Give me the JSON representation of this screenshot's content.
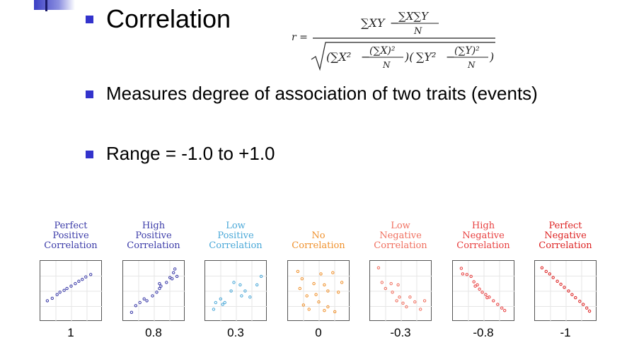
{
  "title": "Correlation",
  "formula": {
    "lhs": "r =",
    "numerator_sum_xy": "∑XY",
    "numerator_minus": "−",
    "numerator_sum_x_sum_y": "∑X∑Y",
    "numerator_n": "N",
    "denominator_sum_x2": "∑X²",
    "denominator_sumx_sq": "(∑X)²",
    "denominator_sum_y2": "∑Y²",
    "denominator_sumy_sq": "(∑Y)²",
    "denominator_n": "N"
  },
  "bullets": [
    "Measures degree of association of two traits (events)",
    "Range = -1.0 to +1.0"
  ],
  "colors": {
    "bullet": "#3333cc",
    "accent": "#3b3fc4"
  },
  "chart_data": {
    "type": "scatter",
    "panels": [
      {
        "label": [
          "Perfect",
          "Positive",
          "Correlation"
        ],
        "value": "1",
        "color": "#3b3ba8",
        "points": [
          [
            0.8,
            3.2
          ],
          [
            1.5,
            3.6
          ],
          [
            2.2,
            4.2
          ],
          [
            2.6,
            4.6
          ],
          [
            3.2,
            4.9
          ],
          [
            3.6,
            5.2
          ],
          [
            4.2,
            5.6
          ],
          [
            4.8,
            6.0
          ],
          [
            5.3,
            6.4
          ],
          [
            5.8,
            6.7
          ],
          [
            6.3,
            7.1
          ],
          [
            7.0,
            7.5
          ]
        ]
      },
      {
        "label": [
          "High",
          "Positive",
          "Correlation"
        ],
        "value": "0.8",
        "color": "#3b3ba8",
        "points": [
          [
            1.0,
            1.3
          ],
          [
            1.6,
            2.4
          ],
          [
            2.2,
            2.9
          ],
          [
            2.8,
            3.5
          ],
          [
            3.2,
            3.2
          ],
          [
            4.0,
            4.0
          ],
          [
            4.6,
            4.6
          ],
          [
            5.0,
            5.2
          ],
          [
            5.2,
            5.6
          ],
          [
            5.0,
            6.0
          ],
          [
            6.0,
            6.2
          ],
          [
            6.5,
            7.0
          ],
          [
            7.0,
            7.8
          ],
          [
            7.2,
            8.4
          ],
          [
            7.5,
            7.2
          ],
          [
            6.8,
            6.8
          ]
        ]
      },
      {
        "label": [
          "Low",
          "Positive",
          "Correlation"
        ],
        "value": "0.3",
        "color": "#4aa8d8",
        "points": [
          [
            1.0,
            1.8
          ],
          [
            1.3,
            2.9
          ],
          [
            2.0,
            3.5
          ],
          [
            2.3,
            2.6
          ],
          [
            2.6,
            2.9
          ],
          [
            3.5,
            4.8
          ],
          [
            3.9,
            6.2
          ],
          [
            4.8,
            5.8
          ],
          [
            5.0,
            4.0
          ],
          [
            5.5,
            4.8
          ],
          [
            6.2,
            3.8
          ],
          [
            7.2,
            5.8
          ],
          [
            7.8,
            7.2
          ]
        ]
      },
      {
        "label": [
          "No",
          "Correlation"
        ],
        "value": "0",
        "color": "#f0922e",
        "points": [
          [
            1.2,
            8.0
          ],
          [
            1.8,
            6.8
          ],
          [
            1.5,
            5.2
          ],
          [
            2.5,
            4.0
          ],
          [
            2.0,
            2.5
          ],
          [
            2.8,
            1.8
          ],
          [
            3.5,
            6.0
          ],
          [
            3.8,
            4.2
          ],
          [
            4.2,
            3.0
          ],
          [
            4.5,
            7.6
          ],
          [
            5.0,
            5.8
          ],
          [
            5.5,
            2.2
          ],
          [
            5.5,
            4.8
          ],
          [
            6.2,
            7.8
          ],
          [
            6.5,
            1.4
          ],
          [
            7.0,
            4.6
          ],
          [
            7.5,
            6.2
          ],
          [
            5.0,
            1.6
          ]
        ]
      },
      {
        "label": [
          "Low",
          "Negative",
          "Correlation"
        ],
        "value": "-0.3",
        "color": "#f07060",
        "points": [
          [
            1.0,
            8.6
          ],
          [
            1.5,
            6.2
          ],
          [
            2.0,
            5.2
          ],
          [
            2.8,
            6.0
          ],
          [
            3.0,
            4.6
          ],
          [
            3.8,
            5.8
          ],
          [
            4.0,
            3.8
          ],
          [
            4.5,
            2.8
          ],
          [
            5.0,
            2.2
          ],
          [
            5.5,
            3.8
          ],
          [
            6.2,
            3.0
          ],
          [
            7.0,
            1.8
          ],
          [
            7.6,
            3.2
          ],
          [
            3.6,
            3.2
          ]
        ]
      },
      {
        "label": [
          "High",
          "Negative",
          "Correlation"
        ],
        "value": "-0.8",
        "color": "#e84040",
        "points": [
          [
            1.0,
            8.5
          ],
          [
            1.2,
            7.6
          ],
          [
            1.8,
            7.5
          ],
          [
            2.4,
            7.2
          ],
          [
            2.8,
            6.3
          ],
          [
            3.0,
            5.6
          ],
          [
            3.6,
            5.1
          ],
          [
            4.0,
            4.6
          ],
          [
            4.5,
            4.2
          ],
          [
            5.0,
            3.8
          ],
          [
            5.6,
            3.2
          ],
          [
            6.2,
            2.6
          ],
          [
            6.8,
            2.0
          ],
          [
            7.2,
            1.6
          ],
          [
            3.3,
            5.8
          ],
          [
            4.7,
            3.7
          ]
        ]
      },
      {
        "label": [
          "Perfect",
          "Negative",
          "Correlation"
        ],
        "value": "-1",
        "color": "#dd2222",
        "points": [
          [
            0.8,
            8.6
          ],
          [
            1.4,
            8.0
          ],
          [
            1.9,
            7.6
          ],
          [
            2.4,
            7.0
          ],
          [
            3.0,
            6.4
          ],
          [
            3.5,
            5.9
          ],
          [
            4.0,
            5.4
          ],
          [
            4.6,
            4.8
          ],
          [
            5.1,
            4.2
          ],
          [
            5.6,
            3.7
          ],
          [
            6.2,
            3.1
          ],
          [
            6.7,
            2.6
          ],
          [
            7.2,
            2.0
          ],
          [
            7.6,
            1.5
          ]
        ]
      }
    ],
    "xlim": [
      0,
      8.5
    ],
    "ylim": [
      0,
      9.5
    ],
    "grid": true
  }
}
